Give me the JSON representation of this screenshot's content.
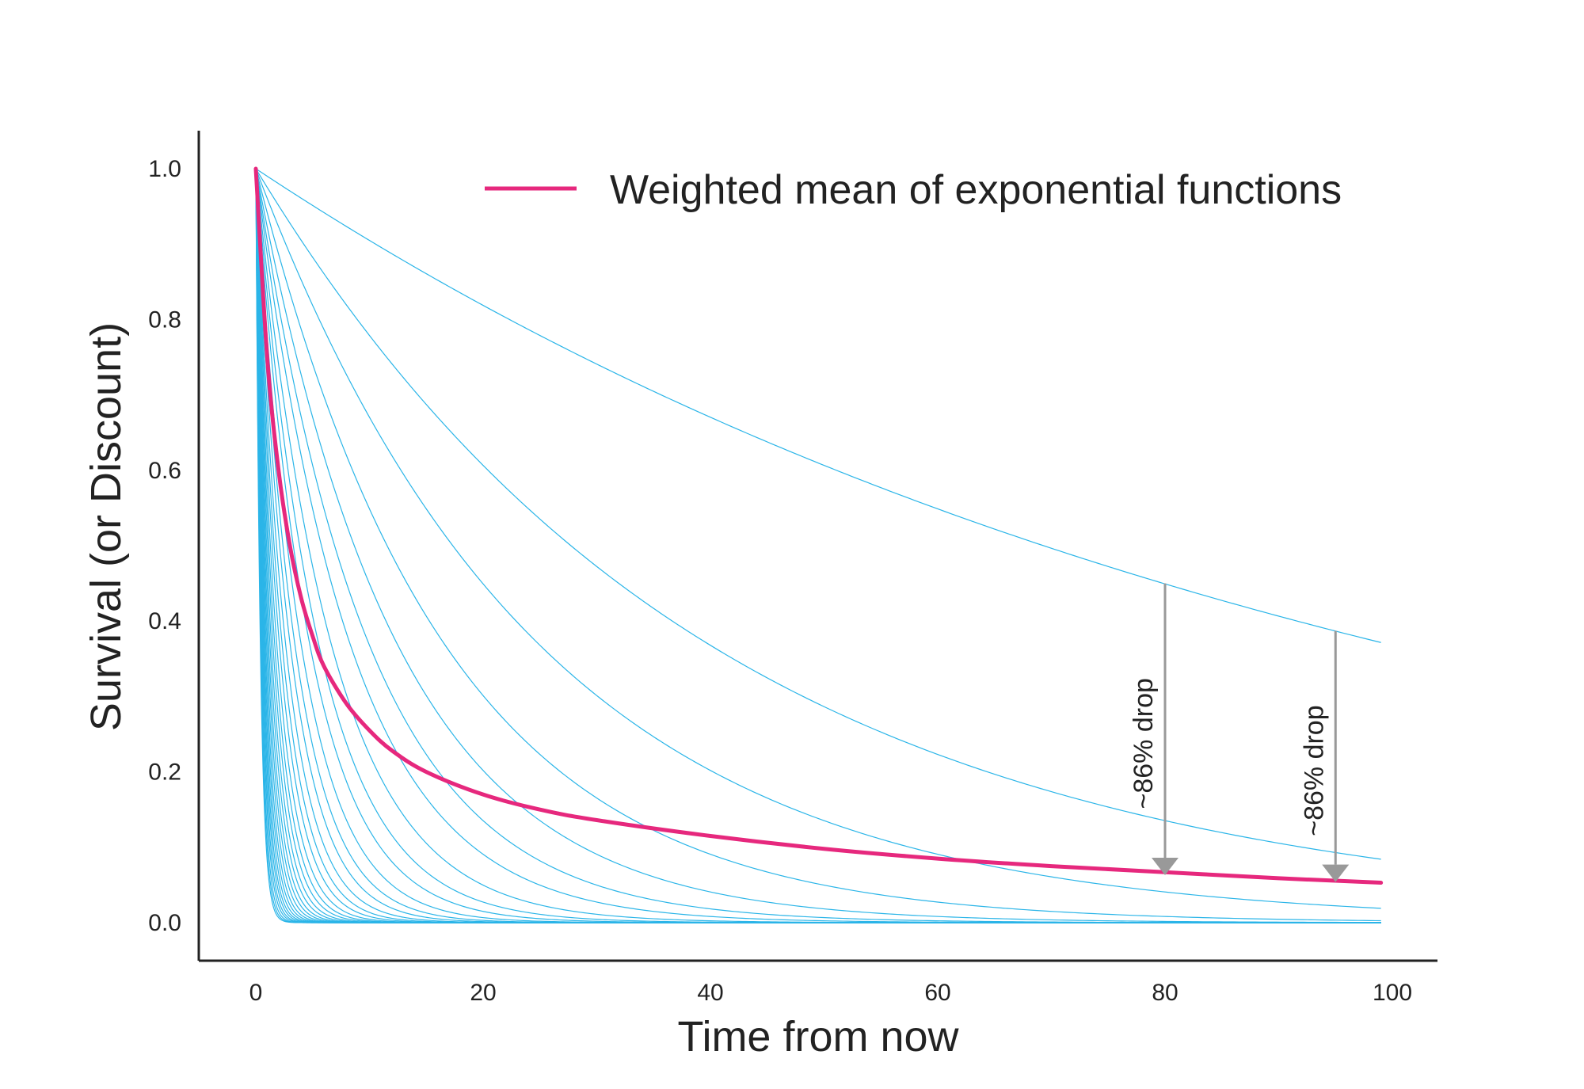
{
  "chart_data": {
    "type": "line",
    "title": "",
    "xlabel": "Time from now",
    "ylabel": "Survival (or Discount)",
    "xlim": [
      -5,
      104
    ],
    "ylim": [
      -0.05,
      1.05
    ],
    "x_ticks": [
      0,
      20,
      40,
      60,
      80,
      100
    ],
    "y_ticks": [
      0.0,
      0.2,
      0.4,
      0.6,
      0.8,
      1.0
    ],
    "x_tick_labels": [
      "0",
      "20",
      "40",
      "60",
      "80",
      "100"
    ],
    "y_tick_labels": [
      "0.0",
      "0.2",
      "0.4",
      "0.6",
      "0.8",
      "1.0"
    ],
    "x_range": [
      0,
      99
    ],
    "grid": false,
    "legend": {
      "placement": "top-right",
      "entries": [
        "Weighted mean of exponential functions"
      ]
    },
    "series": [
      {
        "name": "Weighted mean of exponential functions",
        "role": "mean",
        "color": "#e6287d",
        "x": [
          0,
          1,
          2,
          3,
          4,
          5,
          6,
          8,
          10,
          12,
          15,
          20,
          25,
          30,
          40,
          50,
          60,
          70,
          80,
          90,
          99
        ],
        "y": [
          1.0,
          0.75,
          0.6,
          0.5,
          0.43,
          0.38,
          0.34,
          0.29,
          0.255,
          0.228,
          0.2,
          0.17,
          0.15,
          0.136,
          0.115,
          0.098,
          0.085,
          0.075,
          0.067,
          0.059,
          0.053
        ]
      }
    ],
    "component_curves": {
      "description_of_family": "exponential decay curves exp(-k*t)",
      "color": "#2bb5e8",
      "decay_rates": [
        0.01,
        0.025,
        0.04,
        0.06,
        0.08,
        0.1,
        0.12,
        0.15,
        0.18,
        0.21,
        0.25,
        0.29,
        0.33,
        0.38,
        0.43,
        0.48,
        0.54,
        0.6,
        0.66,
        0.73,
        0.8,
        0.88,
        0.96,
        1.05,
        1.15,
        1.25,
        1.36,
        1.48,
        1.6,
        1.75,
        1.9,
        2.1,
        2.3,
        2.5
      ],
      "x_range": [
        0,
        99
      ]
    },
    "annotations": [
      {
        "text": "~86% drop",
        "x": 80,
        "y_from": 0.45,
        "y_to": 0.063,
        "color": "#999999"
      },
      {
        "text": "~86% drop",
        "x": 95,
        "y_from": 0.387,
        "y_to": 0.054,
        "color": "#999999"
      }
    ]
  }
}
